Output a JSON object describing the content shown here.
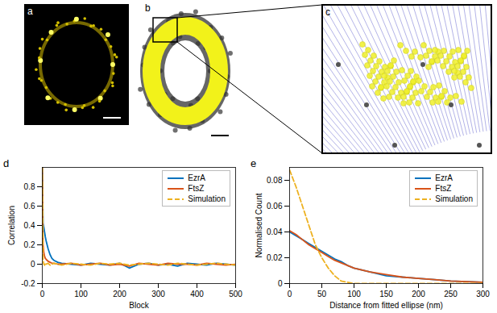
{
  "image_panels": {
    "labels": [
      "a",
      "b",
      "c"
    ]
  },
  "chart_data": [
    {
      "type": "line",
      "title": "d",
      "xlabel": "Block",
      "ylabel": "Correlation",
      "x": [
        0,
        2,
        4,
        6,
        8,
        10,
        15,
        20,
        25,
        30,
        40,
        50,
        75,
        100,
        125,
        150,
        175,
        200,
        225,
        250,
        275,
        300,
        325,
        350,
        375,
        400,
        425,
        450,
        475,
        500
      ],
      "series": [
        {
          "name": "EzrA",
          "color": "#0072BD",
          "line_style": "solid",
          "values": [
            1,
            0.42,
            0.38,
            0.33,
            0.28,
            0.24,
            0.16,
            0.1,
            0.06,
            0.04,
            0.02,
            0.01,
            0.0,
            -0.01,
            0.01,
            0.0,
            -0.01,
            0.01,
            -0.04,
            0.0,
            0.01,
            -0.01,
            0.0,
            -0.02,
            0.01,
            0.0,
            -0.01,
            0.01,
            0.0,
            -0.01
          ]
        },
        {
          "name": "FtsZ",
          "color": "#D95319",
          "line_style": "solid",
          "values": [
            1,
            0.2,
            0.12,
            0.08,
            0.06,
            0.05,
            0.03,
            0.02,
            0.01,
            0.01,
            0.0,
            0.0,
            0.01,
            -0.01,
            0.0,
            0.01,
            -0.01,
            0.0,
            -0.02,
            0.01,
            0.0,
            -0.01,
            0.01,
            0.0,
            0.0,
            -0.01,
            0.01,
            0.0,
            -0.01,
            0.0
          ]
        },
        {
          "name": "Simulation",
          "color": "#EDB120",
          "line_style": "dashed",
          "values": [
            1,
            0.05,
            0.0,
            -0.01,
            0.01,
            0.0,
            0.01,
            -0.01,
            0.0,
            0.01,
            0.0,
            -0.01,
            0.01,
            0.0,
            -0.01,
            0.01,
            0.0,
            0.01,
            -0.01,
            0.0,
            0.01,
            0.0,
            -0.01,
            0.01,
            0.0,
            -0.01,
            0.0,
            0.01,
            0.0,
            -0.01
          ]
        }
      ],
      "xlim": [
        0,
        500
      ],
      "xticks": [
        0,
        100,
        200,
        300,
        400,
        500
      ],
      "ylim": [
        -0.2,
        1
      ],
      "yticks": [
        -0.2,
        0,
        0.2,
        0.4,
        0.6,
        0.8
      ],
      "legend": "top-right"
    },
    {
      "type": "line",
      "title": "e",
      "xlabel": "Distance from fitted ellipse (nm)",
      "ylabel": "Normalised Count",
      "x": [
        0,
        10,
        20,
        30,
        40,
        50,
        60,
        70,
        80,
        90,
        100,
        125,
        150,
        175,
        200,
        225,
        250,
        275,
        300
      ],
      "series": [
        {
          "name": "EzrA",
          "color": "#0072BD",
          "line_style": "solid",
          "values": [
            0.04,
            0.037,
            0.034,
            0.031,
            0.028,
            0.025,
            0.022,
            0.019,
            0.017,
            0.014,
            0.012,
            0.009,
            0.006,
            0.005,
            0.004,
            0.003,
            0.002,
            0.0015,
            0.001
          ]
        },
        {
          "name": "FtsZ",
          "color": "#D95319",
          "line_style": "solid",
          "values": [
            0.041,
            0.038,
            0.034,
            0.03,
            0.027,
            0.024,
            0.021,
            0.018,
            0.016,
            0.014,
            0.012,
            0.009,
            0.007,
            0.005,
            0.004,
            0.003,
            0.002,
            0.0015,
            0.001
          ]
        },
        {
          "name": "Simulation",
          "color": "#EDB120",
          "line_style": "dashed",
          "values": [
            0.088,
            0.075,
            0.06,
            0.045,
            0.03,
            0.02,
            0.012,
            0.006,
            0.002,
            0.001,
            0,
            0,
            0,
            0,
            0,
            0,
            0,
            0,
            0
          ]
        }
      ],
      "xlim": [
        0,
        300
      ],
      "xticks": [
        0,
        50,
        100,
        150,
        200,
        250,
        300
      ],
      "ylim": [
        0,
        0.09
      ],
      "yticks": [
        0,
        0.02,
        0.04,
        0.06,
        0.08
      ],
      "legend": "top-right"
    }
  ]
}
